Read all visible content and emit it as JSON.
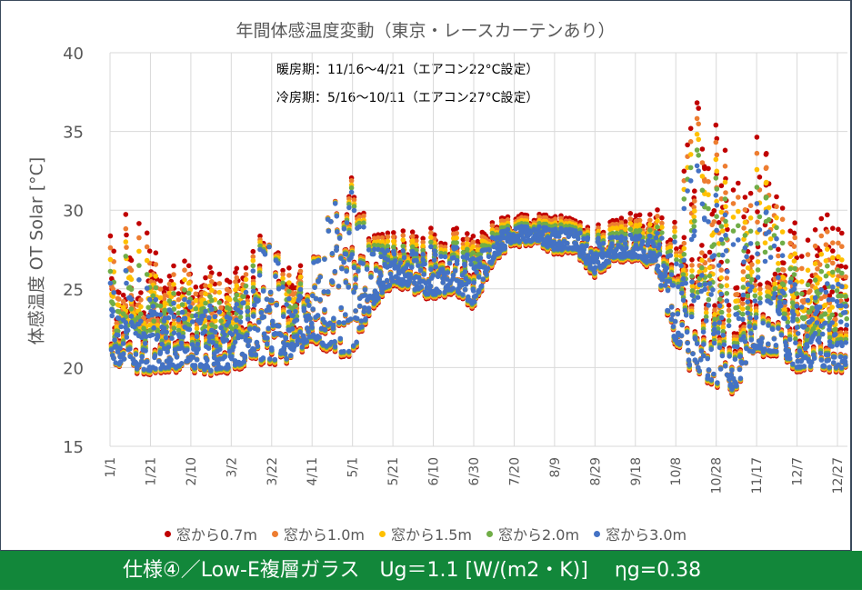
{
  "chart_data": {
    "type": "scatter",
    "title": "年間体感温度変動（東京・レースカーテンあり）",
    "ylabel": "体感温度 OT  Solar [°C]",
    "xlabel": "",
    "ylim": [
      15,
      40
    ],
    "yticks": [
      15,
      20,
      25,
      30,
      35,
      40
    ],
    "xticks": [
      "1/1",
      "1/21",
      "2/10",
      "3/2",
      "3/22",
      "4/11",
      "5/1",
      "5/21",
      "6/10",
      "6/30",
      "7/20",
      "8/9",
      "8/29",
      "9/18",
      "10/8",
      "10/28",
      "11/17",
      "12/7",
      "12/27"
    ],
    "grid": true,
    "legend_position": "bottom",
    "annotations": [
      "暖房期：11/16～4/21（エアコン22°C設定）",
      "冷房期：5/16～10/11（エアコン27°C設定）"
    ],
    "x": [
      "1/1",
      "1/11",
      "1/21",
      "1/31",
      "2/10",
      "2/20",
      "3/2",
      "3/12",
      "3/22",
      "4/1",
      "4/11",
      "4/21",
      "5/1",
      "5/11",
      "5/21",
      "5/31",
      "6/10",
      "6/20",
      "6/30",
      "7/10",
      "7/20",
      "7/30",
      "8/9",
      "8/19",
      "8/29",
      "9/8",
      "9/18",
      "9/28",
      "10/8",
      "10/18",
      "10/28",
      "11/7",
      "11/17",
      "11/27",
      "12/7",
      "12/17",
      "12/27"
    ],
    "daily_low": [
      20,
      20,
      19.8,
      20,
      20,
      19.8,
      20,
      20.5,
      20.5,
      20.5,
      22,
      21,
      21,
      24,
      25.5,
      25,
      24.5,
      25,
      24,
      27,
      28,
      28,
      27.5,
      27.5,
      26,
      27,
      27,
      26.5,
      21.5,
      19.5,
      19,
      18.5,
      21,
      21,
      20,
      20,
      20
    ],
    "series": [
      {
        "name": "窓から0.7m",
        "color": "#c00000",
        "daily_high": [
          31,
          29.5,
          29.5,
          28,
          27,
          26.5,
          28,
          28,
          29,
          26.5,
          27.5,
          30.5,
          32.5,
          29,
          28.8,
          28.8,
          29,
          29,
          28.5,
          29.5,
          29.8,
          29.8,
          30,
          29.5,
          29,
          29.8,
          30,
          30,
          30.5,
          37,
          35.5,
          33,
          35.5,
          32,
          31,
          30,
          30
        ]
      },
      {
        "name": "窓から1.0m",
        "color": "#ed7d31",
        "daily_high": [
          30,
          28.6,
          28.5,
          27.3,
          26.4,
          25.9,
          27.1,
          27.6,
          29,
          25.9,
          27.4,
          30.5,
          32.3,
          28.8,
          28.5,
          28.5,
          28.7,
          28.7,
          28.1,
          29.3,
          29.6,
          29.6,
          29.8,
          29.3,
          28.8,
          29.5,
          29.6,
          29.6,
          30.1,
          36,
          34.4,
          32,
          34.4,
          31.3,
          29.8,
          28.8,
          29
        ]
      },
      {
        "name": "窓から1.5m",
        "color": "#ffc000",
        "daily_high": [
          29,
          27.8,
          27.5,
          26.5,
          25.8,
          25.3,
          26.3,
          27.3,
          29,
          25.3,
          27.3,
          30.5,
          32,
          28.5,
          28.2,
          28.2,
          28.4,
          28.4,
          27.8,
          29,
          29.4,
          29.4,
          29.5,
          29.2,
          28.6,
          29.2,
          29.3,
          29.3,
          29.8,
          35,
          33.3,
          31,
          33.3,
          30.5,
          28.5,
          27.5,
          28
        ]
      },
      {
        "name": "窓から2.0m",
        "color": "#70ad47",
        "daily_high": [
          28,
          26.9,
          26.5,
          25.8,
          25.1,
          24.6,
          25.4,
          26.9,
          29,
          24.6,
          27.1,
          30.5,
          31.8,
          28.3,
          27.8,
          27.8,
          28.1,
          28.1,
          27.4,
          28.8,
          29.2,
          29.2,
          29.3,
          29,
          28.4,
          28.8,
          28.9,
          28.9,
          29.4,
          34,
          32.1,
          30,
          32.1,
          29.8,
          27.3,
          26.3,
          27
        ]
      },
      {
        "name": "窓から3.0m",
        "color": "#4472c4",
        "daily_high": [
          27,
          26,
          25.5,
          25,
          24.5,
          24,
          24.5,
          26.5,
          29,
          24,
          27,
          30.5,
          31.5,
          28,
          27.5,
          27.5,
          27.8,
          27.8,
          27,
          28.5,
          29,
          29,
          29,
          28.8,
          28.2,
          28.5,
          28.5,
          28.5,
          29,
          33,
          31,
          29,
          31,
          29,
          26,
          25,
          26
        ]
      }
    ]
  },
  "footer": {
    "spec_label": "仕様④／Low-E複層ガラス　Ug＝1.1 [W/(m2・K)]　 ηg=0.38",
    "background_color": "#12873a"
  }
}
